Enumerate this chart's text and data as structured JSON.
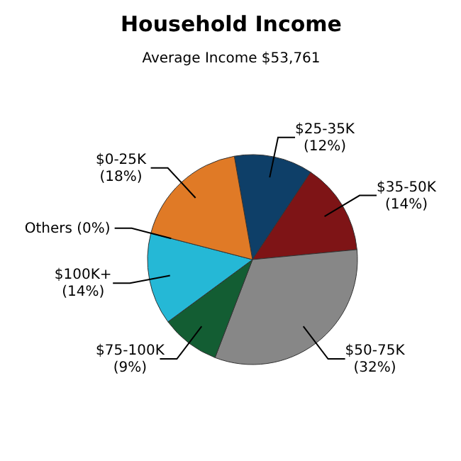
{
  "chart_data": {
    "type": "pie",
    "title": "Household Income",
    "subtitle": "Average Income  $53,761",
    "categories": [
      "$25-35K",
      "$35-50K",
      "$50-75K",
      "$75-100K",
      "$100K+",
      "Others",
      "$0-25K"
    ],
    "values": [
      12,
      14,
      32,
      9,
      14,
      0,
      18
    ],
    "value_labels": [
      "(12%)",
      "(14%)",
      "(32%)",
      "(9%)",
      "(14%)",
      "(0%)",
      "(18%)"
    ],
    "colors": [
      "#0e3f68",
      "#7e1416",
      "#878787",
      "#135d33",
      "#25b8d6",
      "#9a9a9a",
      "#e07a26"
    ]
  }
}
